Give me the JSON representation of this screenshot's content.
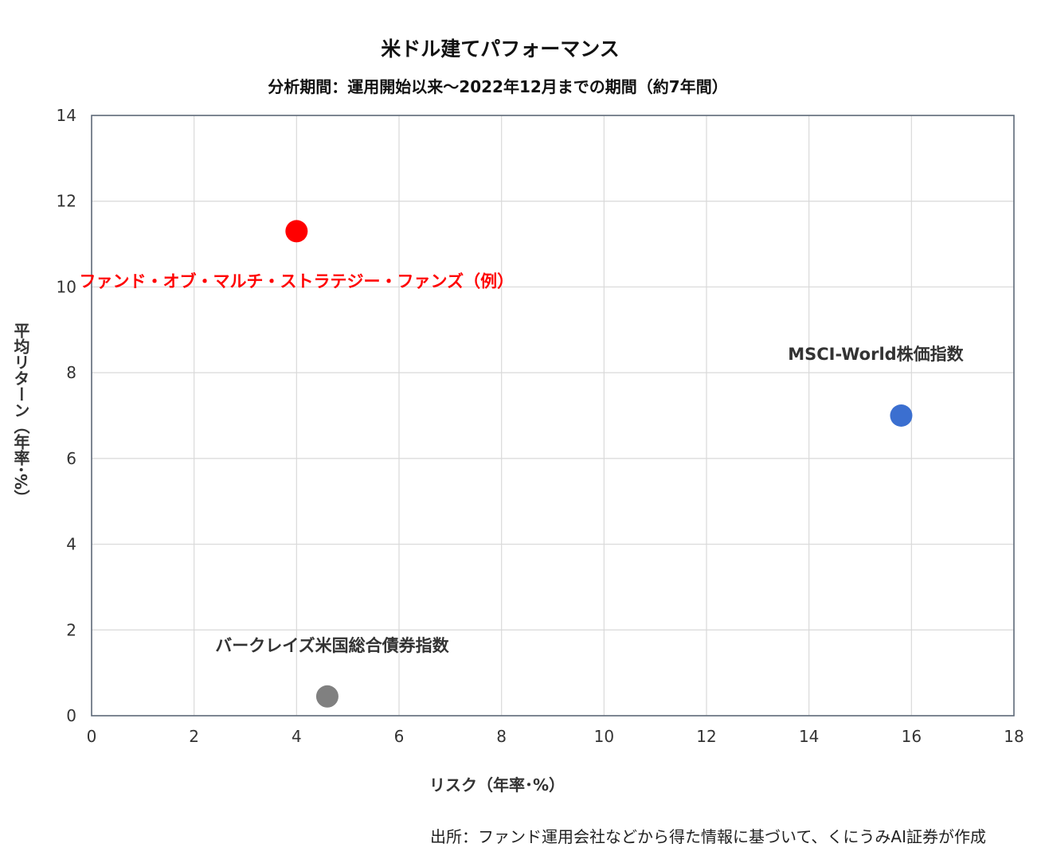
{
  "chart_data": {
    "type": "scatter",
    "title": "米ドル建てパフォーマンス",
    "subtitle": "分析期間：運用開始以来～2022年12月までの期間（約7年間）",
    "xlabel": "リスク（年率･%）",
    "ylabel": "平均リターン（年率･%）",
    "xlim": [
      0,
      18
    ],
    "ylim": [
      0,
      14
    ],
    "xticks": [
      0,
      2,
      4,
      6,
      8,
      10,
      12,
      14,
      16,
      18
    ],
    "yticks": [
      0,
      2,
      4,
      6,
      8,
      10,
      12,
      14
    ],
    "grid": true,
    "legend": "none",
    "points": [
      {
        "label": "ファンド・オブ・マルチ・ストラテジー・ファンズ（例）",
        "x": 4.0,
        "y": 11.3,
        "color": "#ff0000",
        "label_color": "#ff0000"
      },
      {
        "label": "MSCI-World株価指数",
        "x": 15.8,
        "y": 7.0,
        "color": "#3b6fd0",
        "label_color": "#333333"
      },
      {
        "label": "バークレイズ米国総合債券指数",
        "x": 4.6,
        "y": 0.45,
        "color": "#808080",
        "label_color": "#333333"
      }
    ]
  },
  "source": "出所：ファンド運用会社などから得た情報に基づいて、くにうみAI証券が作成"
}
